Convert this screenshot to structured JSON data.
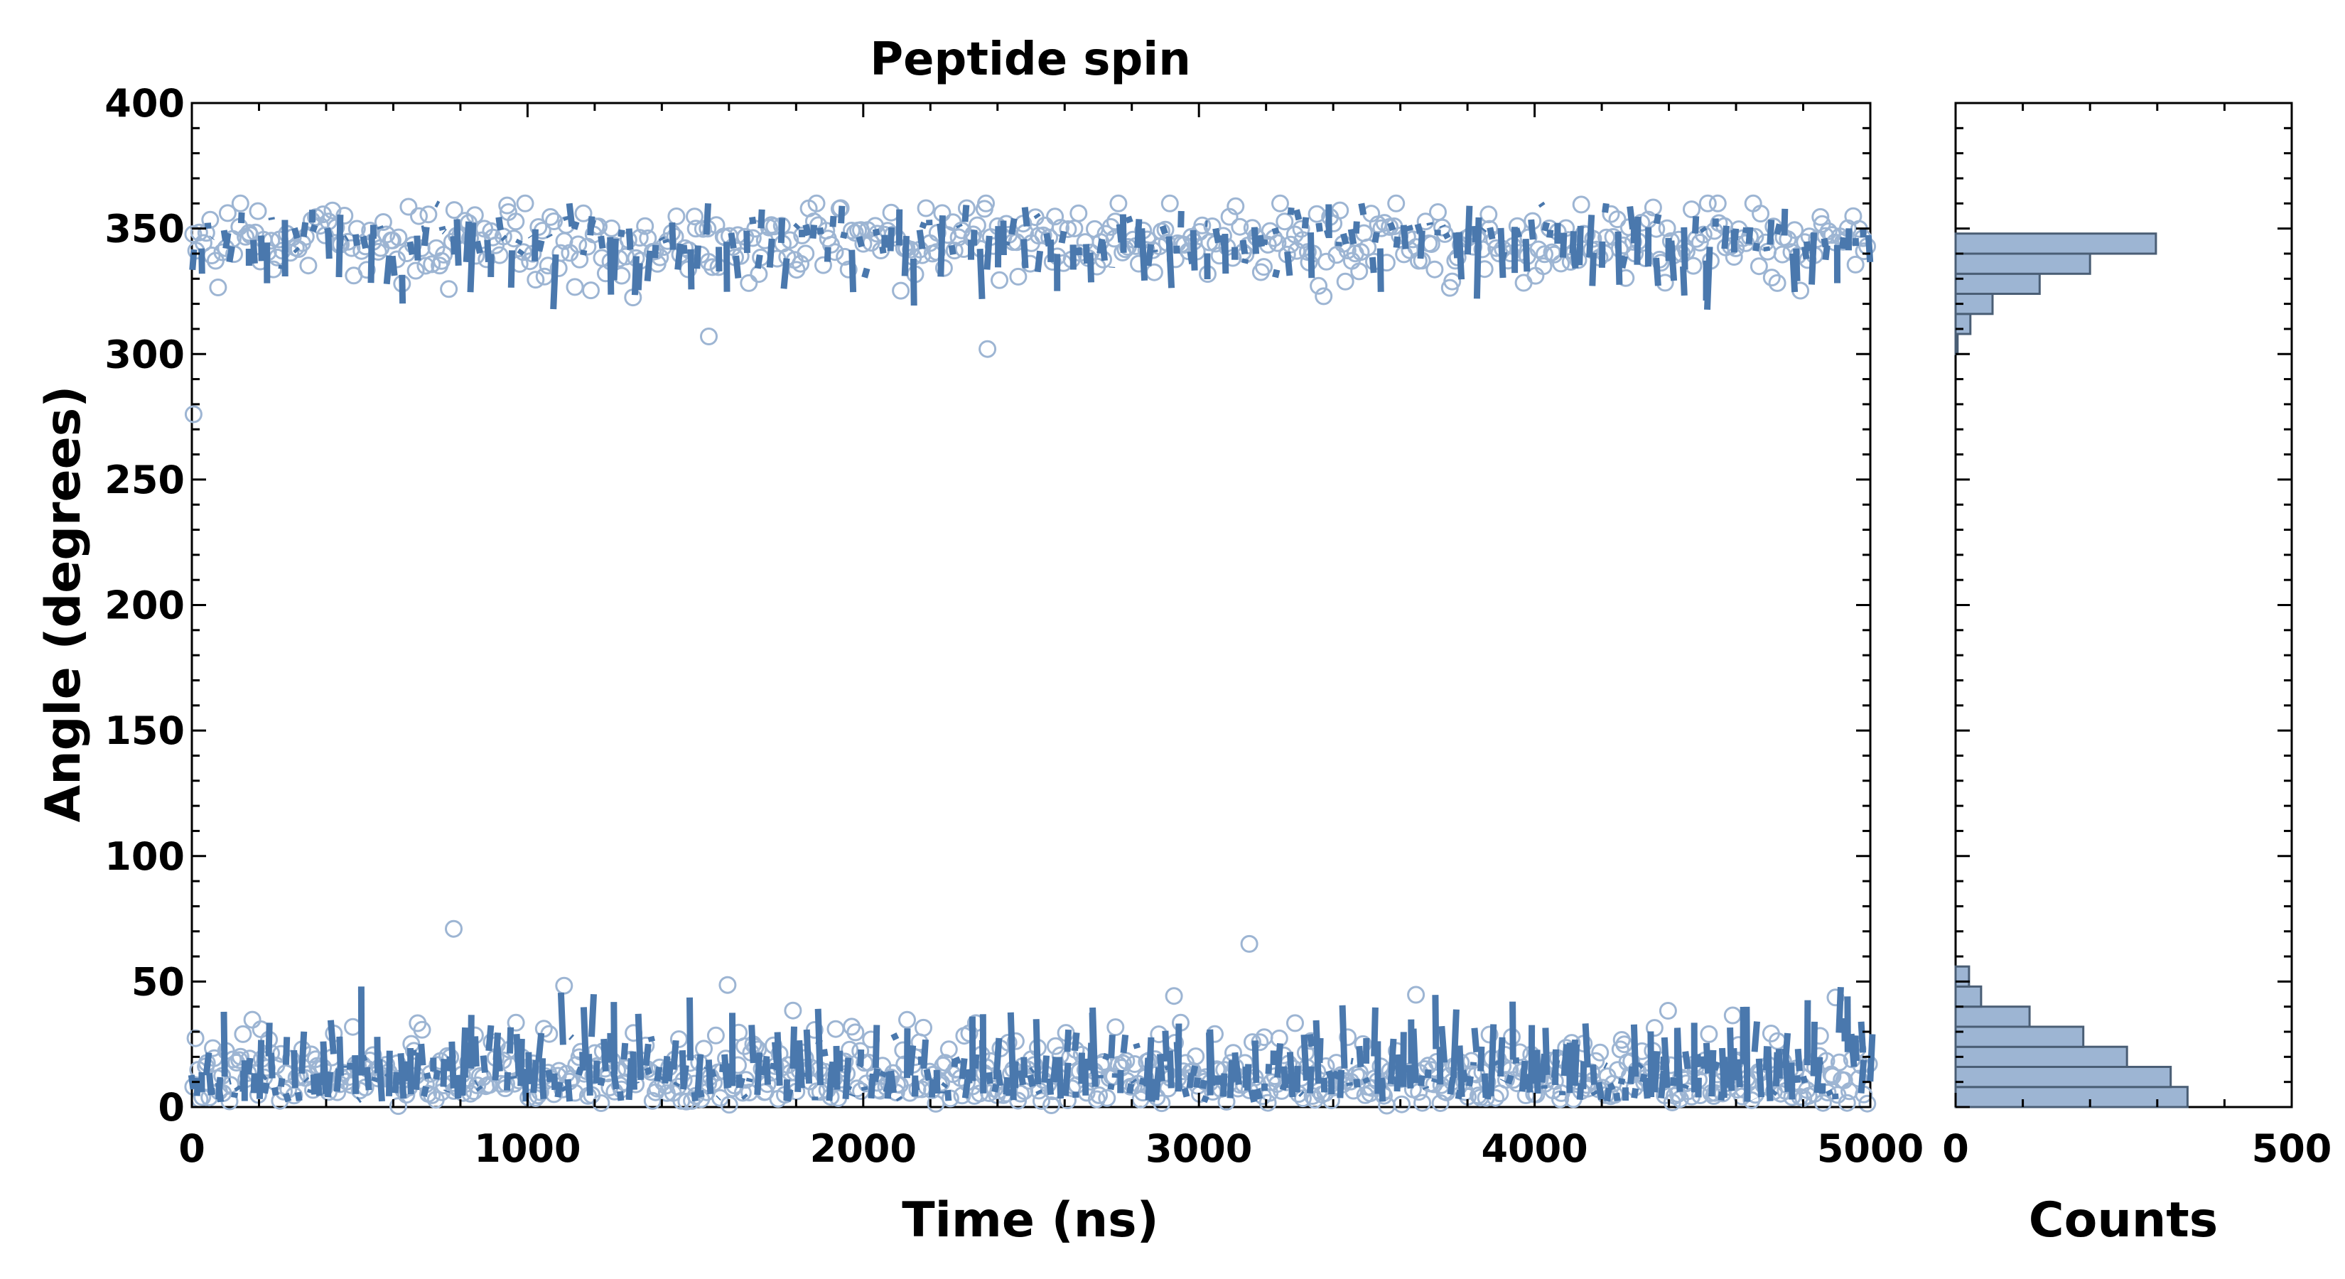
{
  "chart_data": [
    {
      "type": "scatter",
      "title": "Peptide spin",
      "xlabel": "Time (ns)",
      "ylabel": "Angle (degrees)",
      "xlim": [
        0,
        5000
      ],
      "ylim": [
        0,
        400
      ],
      "x_ticks": [
        0,
        1000,
        2000,
        3000,
        4000,
        5000
      ],
      "y_ticks": [
        0,
        50,
        100,
        150,
        200,
        250,
        300,
        350,
        400
      ],
      "grid": false,
      "legend": "none",
      "colors": {
        "points": "#9db5d3",
        "trace": "#4a78ad"
      },
      "clusters": [
        {
          "band": "upper",
          "x_range": [
            0,
            5000
          ],
          "center": 348,
          "spread": [
            300,
            360
          ]
        },
        {
          "band": "lower",
          "x_range": [
            0,
            5000
          ],
          "center": 15,
          "spread": [
            0,
            70
          ]
        }
      ],
      "outliers": [
        {
          "x": 5,
          "y": 276
        },
        {
          "x": 1540,
          "y": 307
        },
        {
          "x": 2370,
          "y": 302
        },
        {
          "x": 780,
          "y": 71
        },
        {
          "x": 3150,
          "y": 65
        }
      ]
    },
    {
      "type": "bar",
      "orientation": "horizontal",
      "xlabel": "Counts",
      "xlim": [
        0,
        500
      ],
      "x_ticks": [
        0,
        500
      ],
      "ylim": [
        0,
        400
      ],
      "colors": {
        "fill": "#9db5d3",
        "edge": "#4a5e75"
      },
      "bins": [
        {
          "y0": 0,
          "y1": 8,
          "count": 345
        },
        {
          "y0": 8,
          "y1": 16,
          "count": 320
        },
        {
          "y0": 16,
          "y1": 24,
          "count": 255
        },
        {
          "y0": 24,
          "y1": 32,
          "count": 190
        },
        {
          "y0": 32,
          "y1": 40,
          "count": 110
        },
        {
          "y0": 40,
          "y1": 48,
          "count": 38
        },
        {
          "y0": 48,
          "y1": 56,
          "count": 20
        },
        {
          "y0": 300,
          "y1": 308,
          "count": 3
        },
        {
          "y0": 308,
          "y1": 316,
          "count": 22
        },
        {
          "y0": 316,
          "y1": 324,
          "count": 55
        },
        {
          "y0": 324,
          "y1": 332,
          "count": 125
        },
        {
          "y0": 332,
          "y1": 340,
          "count": 200
        },
        {
          "y0": 340,
          "y1": 348,
          "count": 298
        }
      ]
    }
  ]
}
